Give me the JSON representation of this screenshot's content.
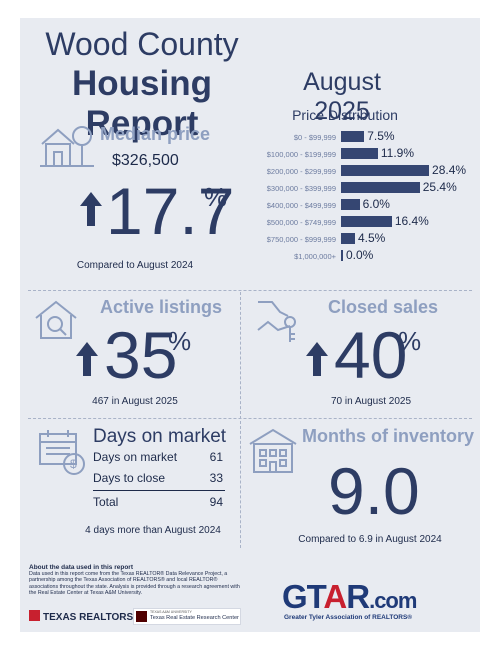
{
  "header": {
    "title_line1": "Wood County",
    "title_line2": "Housing Report",
    "month": "August 2025"
  },
  "price_distribution": {
    "title": "Price Distribution",
    "rows": [
      {
        "label": "$0 - $99,999",
        "value": "7.5%",
        "fraction": 0.075
      },
      {
        "label": "$100,000 - $199,999",
        "value": "11.9%",
        "fraction": 0.119
      },
      {
        "label": "$200,000 - $299,999",
        "value": "28.4%",
        "fraction": 0.284
      },
      {
        "label": "$300,000 - $399,999",
        "value": "25.4%",
        "fraction": 0.254
      },
      {
        "label": "$400,000 - $499,999",
        "value": "6.0%",
        "fraction": 0.06
      },
      {
        "label": "$500,000 - $749,999",
        "value": "16.4%",
        "fraction": 0.164
      },
      {
        "label": "$750,000 - $999,999",
        "value": "4.5%",
        "fraction": 0.045
      },
      {
        "label": "$1,000,000+",
        "value": "0.0%",
        "fraction": 0.0
      }
    ]
  },
  "median_price": {
    "title": "Median price",
    "value": "$326,500",
    "change": "17.7",
    "percent_sign": "%",
    "caption": "Compared to August 2024"
  },
  "active_listings": {
    "title": "Active listings",
    "change": "35",
    "percent_sign": "%",
    "caption": "467 in August 2025"
  },
  "closed_sales": {
    "title": "Closed sales",
    "change": "40",
    "percent_sign": "%",
    "caption": "70 in August 2025"
  },
  "days_on_market": {
    "title": "Days on market",
    "rows": [
      {
        "label": "Days on market",
        "value": "61"
      },
      {
        "label": "Days to close",
        "value": "33"
      }
    ],
    "total_label": "Total",
    "total_value": "94",
    "caption": "4 days more than August 2024"
  },
  "months_of_inventory": {
    "title": "Months of inventory",
    "value": "9.0",
    "caption": "Compared to 6.9 in August 2024"
  },
  "footer": {
    "about_title": "About the data used in this report",
    "about_text": "Data used in this report come from the Texas REALTOR® Data Relevance Project, a partnership among the Texas Association of REALTORS® and local REALTOR® associations throughout the state. Analysis is provided through a research agreement with the Real Estate Center at Texas A&M University.",
    "texas_realtors": "TEXAS REALTORS",
    "tamu_small": "TEXAS A&M UNIVERSITY",
    "tamu_name": "Texas Real Estate Research Center",
    "gtar_g": "GT",
    "gtar_a": "A",
    "gtar_r": "R",
    "gtar_com": ".com",
    "gtar_tagline": "Greater Tyler Association of REALTORS®"
  },
  "colors": {
    "accent": "#2d3c64",
    "bar": "#354672",
    "muted_title": "#8e9fc0",
    "brand_red": "#c8202f"
  }
}
